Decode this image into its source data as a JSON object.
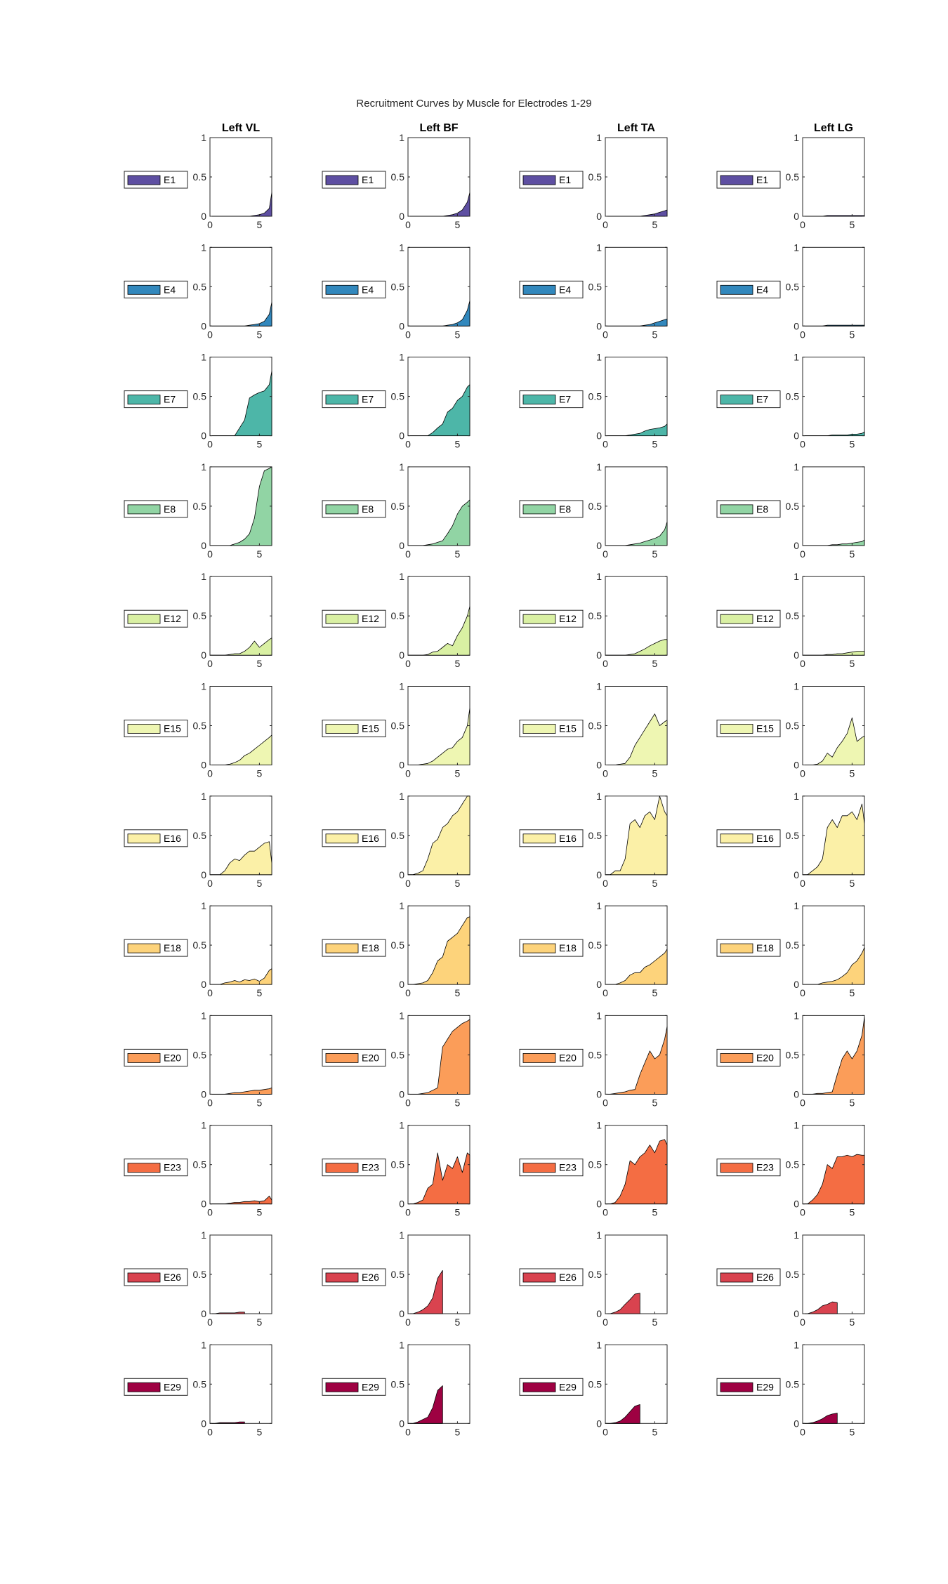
{
  "figure_title": "Recruitment Curves by Muscle for Electrodes 1-29",
  "chart_data": {
    "type": "area",
    "title": "Recruitment Curves by Muscle for Electrodes 1-29",
    "columns": [
      "Left VL",
      "Left BF",
      "Left TA",
      "Left LG"
    ],
    "rows": [
      {
        "name": "E1",
        "color": "#5E4FA2"
      },
      {
        "name": "E4",
        "color": "#3288BD"
      },
      {
        "name": "E7",
        "color": "#4DB6A8"
      },
      {
        "name": "E8",
        "color": "#91D4A4"
      },
      {
        "name": "E12",
        "color": "#D9F0A3"
      },
      {
        "name": "E15",
        "color": "#EEF6B2"
      },
      {
        "name": "E16",
        "color": "#FBF0A7"
      },
      {
        "name": "E18",
        "color": "#FDD37B"
      },
      {
        "name": "E20",
        "color": "#FB9D59"
      },
      {
        "name": "E23",
        "color": "#F46D43"
      },
      {
        "name": "E26",
        "color": "#D9434F"
      },
      {
        "name": "E29",
        "color": "#9E0142"
      }
    ],
    "xlim": [
      0,
      6.25
    ],
    "ylim": [
      0,
      1
    ],
    "xticks": [
      0,
      5
    ],
    "yticks": [
      0,
      0.5,
      1
    ],
    "x_full": [
      0,
      0.5,
      1,
      1.5,
      2,
      2.5,
      3,
      3.5,
      4,
      4.5,
      5,
      5.5,
      6,
      6.25
    ],
    "x_short": [
      0,
      0.5,
      1,
      1.5,
      2,
      2.5,
      3,
      3.5
    ],
    "series": [
      [
        [
          0,
          0,
          0,
          0,
          0,
          0,
          0,
          0,
          0,
          0.01,
          0.02,
          0.04,
          0.1,
          0.3
        ],
        [
          0,
          0,
          0,
          0,
          0,
          0,
          0,
          0,
          0.01,
          0.02,
          0.04,
          0.08,
          0.18,
          0.3
        ],
        [
          0,
          0,
          0,
          0,
          0,
          0,
          0,
          0,
          0.01,
          0.02,
          0.03,
          0.05,
          0.07,
          0.08
        ],
        [
          0,
          0,
          0,
          0,
          0,
          0.01,
          0.01,
          0.01,
          0.01,
          0.01,
          0.01,
          0.01,
          0.01,
          0.01
        ]
      ],
      [
        [
          0,
          0,
          0,
          0,
          0,
          0,
          0,
          0,
          0.01,
          0.02,
          0.03,
          0.06,
          0.15,
          0.3
        ],
        [
          0,
          0,
          0,
          0,
          0,
          0,
          0,
          0,
          0.01,
          0.02,
          0.04,
          0.08,
          0.2,
          0.32
        ],
        [
          0,
          0,
          0,
          0,
          0,
          0,
          0,
          0,
          0.01,
          0.02,
          0.04,
          0.06,
          0.08,
          0.09
        ],
        [
          0,
          0,
          0,
          0,
          0,
          0.01,
          0.01,
          0.01,
          0.01,
          0.01,
          0.01,
          0.01,
          0.01,
          0.01
        ]
      ],
      [
        [
          0,
          0,
          0,
          0,
          0,
          0,
          0.1,
          0.2,
          0.48,
          0.52,
          0.55,
          0.57,
          0.65,
          0.82
        ],
        [
          0,
          0,
          0,
          0,
          0,
          0.04,
          0.1,
          0.15,
          0.3,
          0.35,
          0.45,
          0.5,
          0.62,
          0.65
        ],
        [
          0,
          0,
          0,
          0,
          0,
          0.01,
          0.02,
          0.03,
          0.06,
          0.08,
          0.09,
          0.1,
          0.12,
          0.15
        ],
        [
          0,
          0,
          0,
          0,
          0,
          0,
          0.01,
          0.01,
          0.01,
          0.01,
          0.02,
          0.02,
          0.03,
          0.05
        ]
      ],
      [
        [
          0,
          0,
          0,
          0,
          0,
          0.02,
          0.04,
          0.08,
          0.15,
          0.35,
          0.75,
          0.95,
          0.98,
          1.0
        ],
        [
          0,
          0,
          0,
          0,
          0.01,
          0.02,
          0.04,
          0.06,
          0.15,
          0.25,
          0.4,
          0.5,
          0.55,
          0.58
        ],
        [
          0,
          0,
          0,
          0,
          0,
          0.01,
          0.02,
          0.03,
          0.05,
          0.07,
          0.09,
          0.12,
          0.2,
          0.3
        ],
        [
          0,
          0,
          0,
          0,
          0,
          0,
          0.01,
          0.01,
          0.02,
          0.02,
          0.03,
          0.04,
          0.05,
          0.07
        ]
      ],
      [
        [
          0,
          0,
          0,
          0,
          0.01,
          0.02,
          0.02,
          0.05,
          0.1,
          0.18,
          0.1,
          0.15,
          0.2,
          0.22
        ],
        [
          0,
          0,
          0,
          0,
          0.01,
          0.04,
          0.05,
          0.1,
          0.15,
          0.12,
          0.25,
          0.35,
          0.5,
          0.62
        ],
        [
          0,
          0,
          0,
          0,
          0,
          0.01,
          0.02,
          0.05,
          0.08,
          0.12,
          0.15,
          0.18,
          0.2,
          0.2
        ],
        [
          0,
          0,
          0,
          0,
          0,
          0.01,
          0.01,
          0.02,
          0.02,
          0.03,
          0.04,
          0.05,
          0.05,
          0.05
        ]
      ],
      [
        [
          0,
          0,
          0,
          0,
          0.01,
          0.03,
          0.06,
          0.12,
          0.15,
          0.2,
          0.25,
          0.3,
          0.35,
          0.38
        ],
        [
          0,
          0,
          0,
          0.01,
          0.02,
          0.05,
          0.1,
          0.15,
          0.2,
          0.22,
          0.3,
          0.35,
          0.5,
          0.72
        ],
        [
          0,
          0,
          0,
          0.01,
          0.02,
          0.1,
          0.25,
          0.35,
          0.45,
          0.55,
          0.65,
          0.5,
          0.55,
          0.57
        ],
        [
          0,
          0,
          0,
          0.01,
          0.05,
          0.15,
          0.1,
          0.22,
          0.3,
          0.4,
          0.6,
          0.3,
          0.35,
          0.37
        ]
      ],
      [
        [
          0,
          0,
          0,
          0.05,
          0.15,
          0.2,
          0.18,
          0.25,
          0.3,
          0.3,
          0.35,
          0.4,
          0.42,
          0.15
        ],
        [
          0,
          0,
          0.02,
          0.05,
          0.2,
          0.4,
          0.45,
          0.6,
          0.65,
          0.75,
          0.8,
          0.9,
          1.0,
          1.0
        ],
        [
          0,
          0,
          0.05,
          0.05,
          0.2,
          0.65,
          0.7,
          0.6,
          0.75,
          0.8,
          0.7,
          1.0,
          0.8,
          0.75
        ],
        [
          0,
          0,
          0.05,
          0.1,
          0.2,
          0.6,
          0.7,
          0.6,
          0.75,
          0.75,
          0.8,
          0.7,
          0.9,
          0.65
        ]
      ],
      [
        [
          0,
          0,
          0,
          0.02,
          0.03,
          0.05,
          0.03,
          0.06,
          0.05,
          0.07,
          0.04,
          0.08,
          0.18,
          0.2
        ],
        [
          0,
          0,
          0.01,
          0.02,
          0.05,
          0.15,
          0.3,
          0.35,
          0.55,
          0.6,
          0.65,
          0.75,
          0.85,
          0.86
        ],
        [
          0,
          0,
          0,
          0.02,
          0.05,
          0.12,
          0.15,
          0.15,
          0.22,
          0.25,
          0.3,
          0.35,
          0.4,
          0.45
        ],
        [
          0,
          0,
          0,
          0,
          0.02,
          0.03,
          0.04,
          0.06,
          0.1,
          0.15,
          0.25,
          0.3,
          0.4,
          0.47
        ]
      ],
      [
        [
          0,
          0,
          0,
          0,
          0.01,
          0.02,
          0.02,
          0.03,
          0.04,
          0.05,
          0.05,
          0.06,
          0.07,
          0.08
        ],
        [
          0,
          0,
          0,
          0.01,
          0.02,
          0.05,
          0.08,
          0.6,
          0.7,
          0.8,
          0.85,
          0.9,
          0.93,
          0.95
        ],
        [
          0,
          0,
          0.01,
          0.02,
          0.03,
          0.05,
          0.06,
          0.25,
          0.4,
          0.55,
          0.45,
          0.5,
          0.7,
          0.86
        ],
        [
          0,
          0,
          0,
          0.01,
          0.01,
          0.02,
          0.03,
          0.25,
          0.45,
          0.55,
          0.45,
          0.55,
          0.75,
          0.98
        ]
      ],
      [
        [
          0,
          0,
          0,
          0,
          0.01,
          0.02,
          0.02,
          0.03,
          0.03,
          0.04,
          0.03,
          0.04,
          0.1,
          0.05
        ],
        [
          0,
          0,
          0.02,
          0.05,
          0.2,
          0.25,
          0.65,
          0.3,
          0.5,
          0.45,
          0.6,
          0.4,
          0.65,
          0.62
        ],
        [
          0,
          0,
          0.02,
          0.1,
          0.25,
          0.55,
          0.5,
          0.6,
          0.65,
          0.75,
          0.65,
          0.8,
          0.82,
          0.75
        ],
        [
          0,
          0,
          0.05,
          0.12,
          0.25,
          0.5,
          0.45,
          0.6,
          0.6,
          0.62,
          0.6,
          0.63,
          0.62,
          0.62
        ]
      ],
      [
        [
          0,
          0,
          0.01,
          0.01,
          0.01,
          0.01,
          0.02,
          0.02
        ],
        [
          0,
          0,
          0.02,
          0.05,
          0.1,
          0.2,
          0.45,
          0.55
        ],
        [
          0,
          0,
          0.02,
          0.05,
          0.12,
          0.18,
          0.25,
          0.26
        ],
        [
          0,
          0,
          0.02,
          0.05,
          0.1,
          0.12,
          0.15,
          0.14
        ]
      ],
      [
        [
          0,
          0,
          0.01,
          0.01,
          0.01,
          0.01,
          0.02,
          0.02
        ],
        [
          0,
          0,
          0.02,
          0.05,
          0.08,
          0.2,
          0.42,
          0.48
        ],
        [
          0,
          0,
          0.01,
          0.03,
          0.08,
          0.15,
          0.22,
          0.24
        ],
        [
          0,
          0,
          0.01,
          0.03,
          0.06,
          0.1,
          0.12,
          0.13
        ]
      ]
    ]
  }
}
